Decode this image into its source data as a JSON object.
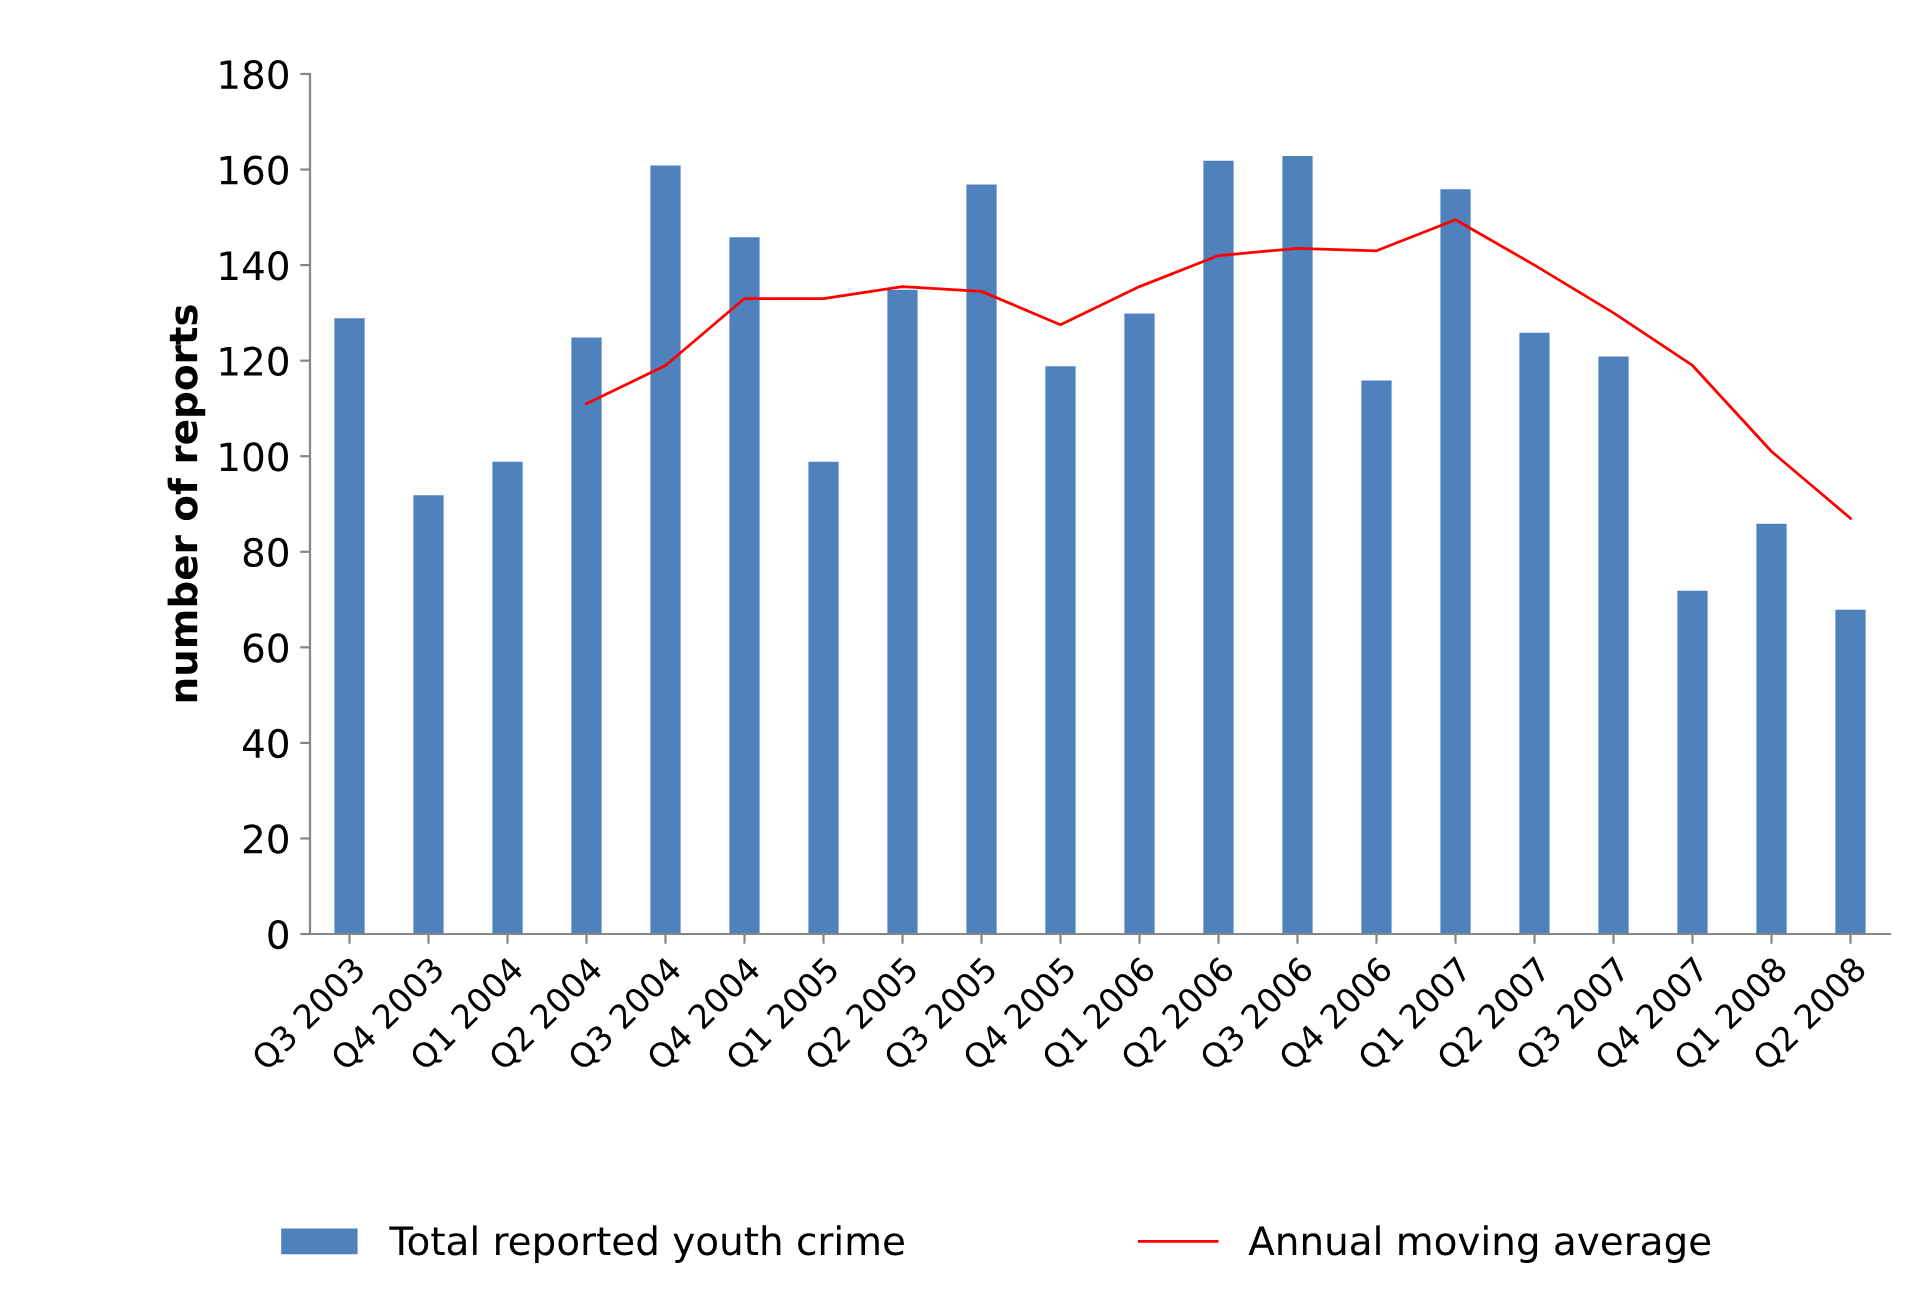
{
  "chart_data": {
    "type": "bar",
    "ylabel": "number of reports",
    "categories": [
      "Q3 2003",
      "Q4 2003",
      "Q1 2004",
      "Q2 2004",
      "Q3 2004",
      "Q4 2004",
      "Q1 2005",
      "Q2 2005",
      "Q3 2005",
      "Q4 2005",
      "Q1 2006",
      "Q2 2006",
      "Q3 2006",
      "Q4 2006",
      "Q1 2007",
      "Q2 2007",
      "Q3 2007",
      "Q4 2007",
      "Q1 2008",
      "Q2 2008"
    ],
    "series": [
      {
        "name": "Total reported youth crime",
        "color": "#4f81bd",
        "values": [
          129,
          92,
          99,
          125,
          161,
          146,
          99,
          135,
          157,
          119,
          130,
          162,
          163,
          116,
          156,
          126,
          121,
          72,
          86,
          68
        ]
      },
      {
        "name": "Annual moving average",
        "type": "line",
        "color": "#ff0000",
        "values": [
          null,
          null,
          null,
          111,
          119,
          133,
          133,
          135.5,
          134.5,
          127.5,
          135.5,
          142,
          143.5,
          143,
          149.5,
          140,
          130,
          119,
          101,
          87
        ]
      }
    ],
    "ylim": [
      0,
      180
    ],
    "yticks": [
      0,
      20,
      40,
      60,
      80,
      100,
      120,
      140,
      160,
      180
    ],
    "legend": "bottom"
  }
}
